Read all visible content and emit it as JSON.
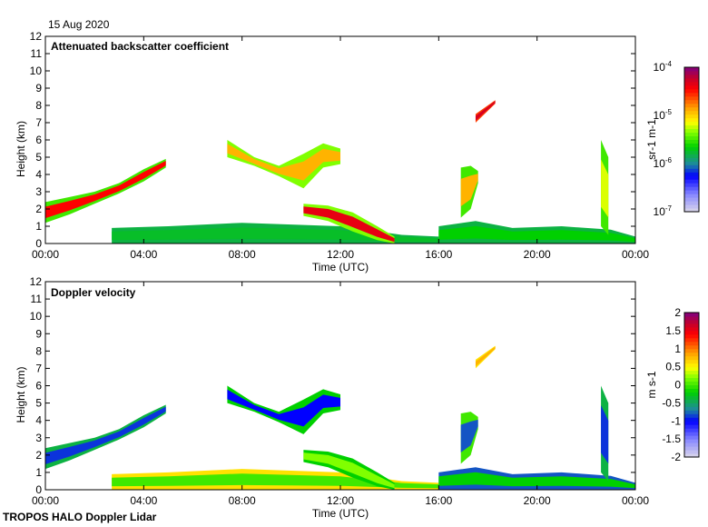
{
  "date_label": "15 Aug 2020",
  "footer": "TROPOS HALO Doppler Lidar",
  "chart_data": [
    {
      "type": "heatmap",
      "title": "Attenuated backscatter coefficient",
      "xlabel": "Time (UTC)",
      "ylabel": "Height (km)",
      "xlim": [
        0,
        24
      ],
      "ylim": [
        0,
        12
      ],
      "xticks": [
        "00:00",
        "04:00",
        "08:00",
        "12:00",
        "16:00",
        "20:00",
        "00:00"
      ],
      "yticks": [
        "0",
        "1",
        "2",
        "3",
        "4",
        "5",
        "6",
        "7",
        "8",
        "9",
        "10",
        "11",
        "12"
      ],
      "colorbar": {
        "label": "sr-1 m-1",
        "scale": "log",
        "range": [
          1e-07,
          0.0001
        ],
        "ticks": [
          "10-7",
          "10-6",
          "10-5",
          "10-4"
        ]
      },
      "features": [
        {
          "name": "elevated-aerosol-layer",
          "value": 0.85,
          "edge": 0.5,
          "points": [
            [
              0,
              1.2,
              2.4
            ],
            [
              1,
              1.7,
              2.7
            ],
            [
              2,
              2.3,
              3.0
            ],
            [
              3,
              2.9,
              3.5
            ],
            [
              4,
              3.6,
              4.3
            ],
            [
              4.9,
              4.4,
              4.9
            ]
          ]
        },
        {
          "name": "boundary-layer",
          "value": 0.42,
          "edge": 0.4,
          "points": [
            [
              2.7,
              0,
              0.9
            ],
            [
              5,
              0,
              1.0
            ],
            [
              8,
              0,
              1.2
            ],
            [
              10,
              0,
              1.1
            ],
            [
              12,
              0,
              1.0
            ],
            [
              14.5,
              0,
              0.5
            ],
            [
              16,
              0,
              0.4
            ]
          ]
        },
        {
          "name": "mid-cloud",
          "value": 0.7,
          "edge": 0.55,
          "points": [
            [
              7.4,
              5.0,
              6.0
            ],
            [
              8.5,
              4.5,
              5.0
            ],
            [
              9.5,
              3.9,
              4.5
            ],
            [
              10.5,
              3.2,
              5.2
            ],
            [
              11.3,
              4.4,
              5.8
            ],
            [
              12,
              4.6,
              5.5
            ]
          ]
        },
        {
          "name": "descending-aerosol",
          "value": 0.88,
          "edge": 0.55,
          "points": [
            [
              10.5,
              1.6,
              2.3
            ],
            [
              11.5,
              1.3,
              2.2
            ],
            [
              12.5,
              0.7,
              1.8
            ],
            [
              13.5,
              0.2,
              1.0
            ],
            [
              14.2,
              0,
              0.4
            ]
          ]
        },
        {
          "name": "afternoon-boundary-layer",
          "value": 0.45,
          "edge": 0.4,
          "points": [
            [
              16,
              0,
              1.0
            ],
            [
              17.5,
              0,
              1.3
            ],
            [
              19,
              0,
              0.9
            ],
            [
              21,
              0,
              1.0
            ],
            [
              23,
              0,
              0.8
            ],
            [
              24,
              0,
              0.4
            ]
          ]
        },
        {
          "name": "plume-17h",
          "value": 0.7,
          "edge": 0.5,
          "points": [
            [
              16.9,
              1.5,
              4.4
            ],
            [
              17.3,
              2.0,
              4.5
            ],
            [
              17.6,
              3.5,
              4.2
            ]
          ]
        },
        {
          "name": "high-cloud",
          "value": 0.9,
          "edge": 0.8,
          "points": [
            [
              17.5,
              7.0,
              7.5
            ],
            [
              18.3,
              8.1,
              8.3
            ]
          ]
        },
        {
          "name": "spike-23h",
          "value": 0.6,
          "edge": 0.5,
          "points": [
            [
              22.6,
              1.0,
              6.0
            ],
            [
              22.9,
              0.5,
              5.0
            ]
          ]
        }
      ]
    },
    {
      "type": "heatmap",
      "title": "Doppler velocity",
      "xlabel": "Time (UTC)",
      "ylabel": "Height (km)",
      "xlim": [
        0,
        24
      ],
      "ylim": [
        0,
        12
      ],
      "xticks": [
        "00:00",
        "04:00",
        "08:00",
        "12:00",
        "16:00",
        "20:00",
        "00:00"
      ],
      "yticks": [
        "0",
        "1",
        "2",
        "3",
        "4",
        "5",
        "6",
        "7",
        "8",
        "9",
        "10",
        "11",
        "12"
      ],
      "colorbar": {
        "label": "m s-1",
        "scale": "linear",
        "range": [
          -2,
          2
        ],
        "ticks": [
          "2",
          "1.5",
          "1",
          "0.5",
          "0",
          "-0.5",
          "-1",
          "-1.5",
          "-2"
        ]
      },
      "features": [
        {
          "name": "elevated-aerosol-layer",
          "value": 0.28,
          "edge": 0.4,
          "points": [
            [
              0,
              1.2,
              2.4
            ],
            [
              1,
              1.7,
              2.7
            ],
            [
              2,
              2.3,
              3.0
            ],
            [
              3,
              2.9,
              3.5
            ],
            [
              4,
              3.6,
              4.3
            ],
            [
              4.9,
              4.4,
              4.9
            ]
          ]
        },
        {
          "name": "boundary-layer",
          "value": 0.5,
          "edge": 0.65,
          "points": [
            [
              2.7,
              0,
              0.9
            ],
            [
              5,
              0,
              1.0
            ],
            [
              8,
              0,
              1.2
            ],
            [
              10,
              0,
              1.1
            ],
            [
              12,
              0,
              1.0
            ],
            [
              14.5,
              0,
              0.5
            ],
            [
              16,
              0,
              0.4
            ]
          ]
        },
        {
          "name": "mid-cloud",
          "value": 0.25,
          "edge": 0.45,
          "points": [
            [
              7.4,
              5.0,
              6.0
            ],
            [
              8.5,
              4.5,
              5.0
            ],
            [
              9.5,
              3.9,
              4.5
            ],
            [
              10.5,
              3.2,
              5.2
            ],
            [
              11.3,
              4.4,
              5.8
            ],
            [
              12,
              4.6,
              5.5
            ]
          ]
        },
        {
          "name": "descending-aerosol",
          "value": 0.55,
          "edge": 0.45,
          "points": [
            [
              10.5,
              1.6,
              2.3
            ],
            [
              11.5,
              1.3,
              2.2
            ],
            [
              12.5,
              0.7,
              1.8
            ],
            [
              13.5,
              0.2,
              1.0
            ],
            [
              14.2,
              0,
              0.4
            ]
          ]
        },
        {
          "name": "afternoon-boundary-layer",
          "value": 0.45,
          "edge": 0.3,
          "points": [
            [
              16,
              0,
              1.0
            ],
            [
              17.5,
              0,
              1.3
            ],
            [
              19,
              0,
              0.9
            ],
            [
              21,
              0,
              1.0
            ],
            [
              23,
              0,
              0.8
            ],
            [
              24,
              0,
              0.4
            ]
          ]
        },
        {
          "name": "plume-17h",
          "value": 0.3,
          "edge": 0.5,
          "points": [
            [
              16.9,
              1.5,
              4.4
            ],
            [
              17.3,
              2.0,
              4.5
            ],
            [
              17.6,
              3.5,
              4.2
            ]
          ]
        },
        {
          "name": "high-cloud",
          "value": 0.7,
          "edge": 0.65,
          "points": [
            [
              17.5,
              7.0,
              7.5
            ],
            [
              18.3,
              8.1,
              8.3
            ]
          ]
        },
        {
          "name": "spike-23h",
          "value": 0.28,
          "edge": 0.4,
          "points": [
            [
              22.6,
              1.0,
              6.0
            ],
            [
              22.9,
              0.5,
              5.0
            ]
          ]
        }
      ]
    }
  ]
}
